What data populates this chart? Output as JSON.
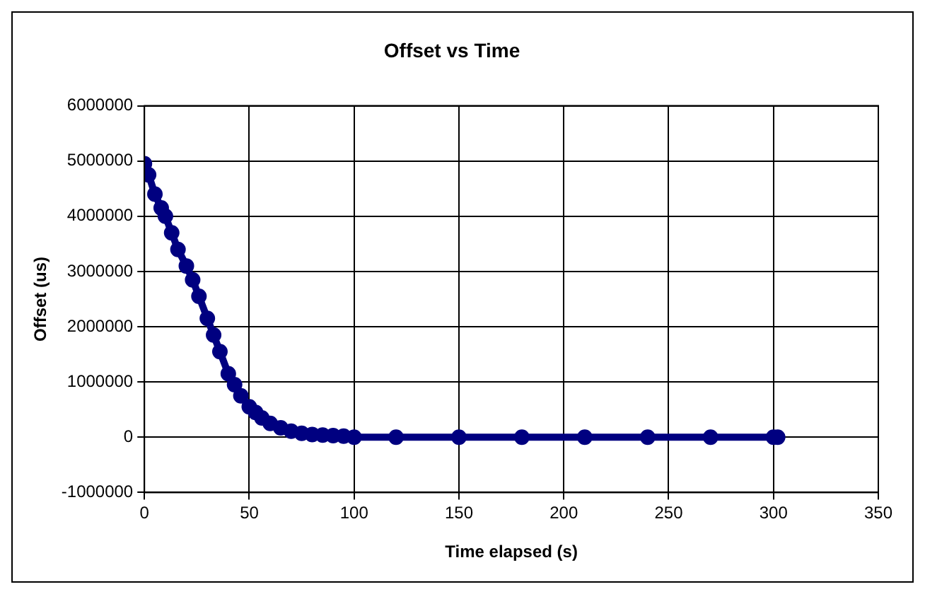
{
  "chart_data": {
    "type": "line",
    "title": "Offset vs Time",
    "xlabel": "Time elapsed (s)",
    "ylabel": "Offset (us)",
    "series": [
      {
        "color": "#000080",
        "x": [
          0,
          2,
          5,
          8,
          10,
          13,
          16,
          20,
          23,
          26,
          30,
          33,
          36,
          40,
          43,
          46,
          50,
          53,
          56,
          60,
          65,
          70,
          75,
          80,
          85,
          90,
          95,
          100,
          120,
          150,
          180,
          210,
          240,
          270,
          300,
          302
        ],
        "values": [
          4950000,
          4750000,
          4400000,
          4150000,
          4000000,
          3700000,
          3400000,
          3100000,
          2850000,
          2550000,
          2150000,
          1850000,
          1550000,
          1150000,
          950000,
          750000,
          550000,
          450000,
          350000,
          250000,
          170000,
          110000,
          70000,
          50000,
          40000,
          30000,
          20000,
          0,
          0,
          0,
          0,
          0,
          0,
          0,
          0,
          0
        ]
      }
    ],
    "xlim": [
      0,
      350
    ],
    "xticks": [
      0,
      50,
      100,
      150,
      200,
      250,
      300,
      350
    ],
    "ylim": [
      -1000000,
      6000000
    ],
    "yticks": [
      -1000000,
      0,
      1000000,
      2000000,
      3000000,
      4000000,
      5000000,
      6000000
    ],
    "grid": true,
    "legend": false,
    "marker": "circle",
    "line_style": "solid"
  }
}
